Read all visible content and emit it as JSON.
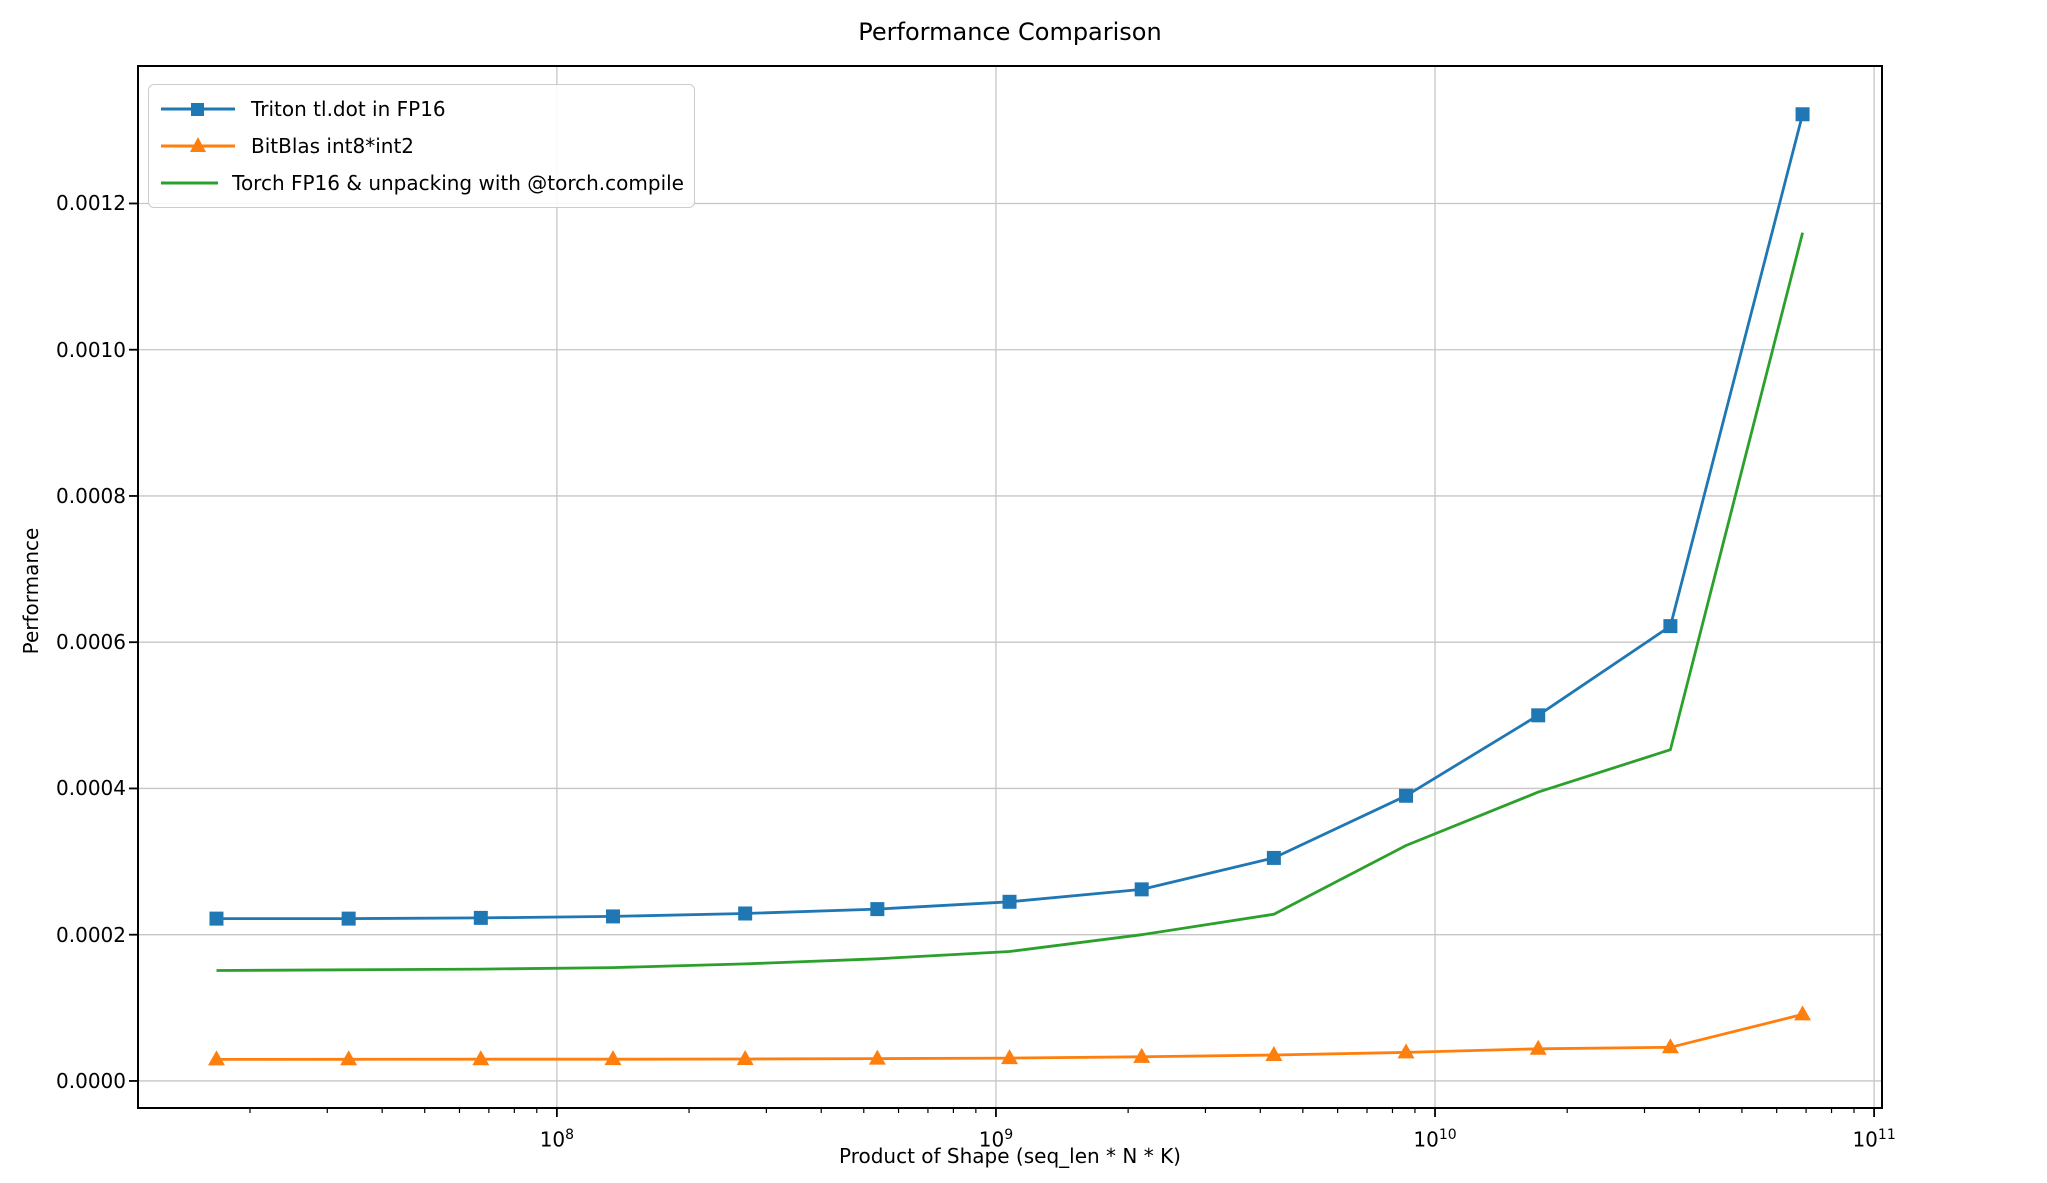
{
  "chart_data": {
    "type": "line",
    "title": "Performance Comparison",
    "xlabel": "Product of Shape (seq_len * N * K)",
    "ylabel": "Performance",
    "x_scale": "log10",
    "grid": true,
    "legend_position": "upper left",
    "xlim_log10": [
      7.046,
      11.018
    ],
    "ylim": [
      -3.7e-05,
      0.001388
    ],
    "x_major_tick_exponents": [
      8,
      9,
      10,
      11
    ],
    "y_ticks": [
      0.0,
      0.0002,
      0.0004,
      0.0006,
      0.0008,
      0.001,
      0.0012
    ],
    "y_tick_labels": [
      "0.0000",
      "0.0002",
      "0.0004",
      "0.0006",
      "0.0008",
      "0.0010",
      "0.0012"
    ],
    "x": [
      16777216,
      33554432,
      67108864,
      134217728,
      268435456,
      536870912,
      1073741824,
      2147483648,
      4294967296,
      8589934592,
      17179869184,
      34359738368,
      68719476736
    ],
    "series": [
      {
        "name": "Triton tl.dot in FP16",
        "color": "#1f77b4",
        "marker": "square",
        "values": [
          0.000222,
          0.000222,
          0.000223,
          0.000225,
          0.000229,
          0.000235,
          0.000245,
          0.000262,
          0.000305,
          0.00039,
          0.0005,
          0.000622,
          0.001322
        ]
      },
      {
        "name": "BitBlas int8*int2",
        "color": "#ff7f0e",
        "marker": "triangle",
        "values": [
          2.95e-05,
          2.96e-05,
          2.97e-05,
          2.98e-05,
          3e-05,
          3.05e-05,
          3.12e-05,
          3.3e-05,
          3.55e-05,
          3.9e-05,
          4.4e-05,
          4.6e-05,
          9.1e-05
        ]
      },
      {
        "name": "Torch FP16 & unpacking with @torch.compile",
        "color": "#2ca02c",
        "marker": "none",
        "values": [
          0.000151,
          0.000152,
          0.000153,
          0.000155,
          0.00016,
          0.000167,
          0.000177,
          0.0002,
          0.000228,
          0.000322,
          0.000395,
          0.000453,
          0.00116
        ]
      }
    ]
  }
}
